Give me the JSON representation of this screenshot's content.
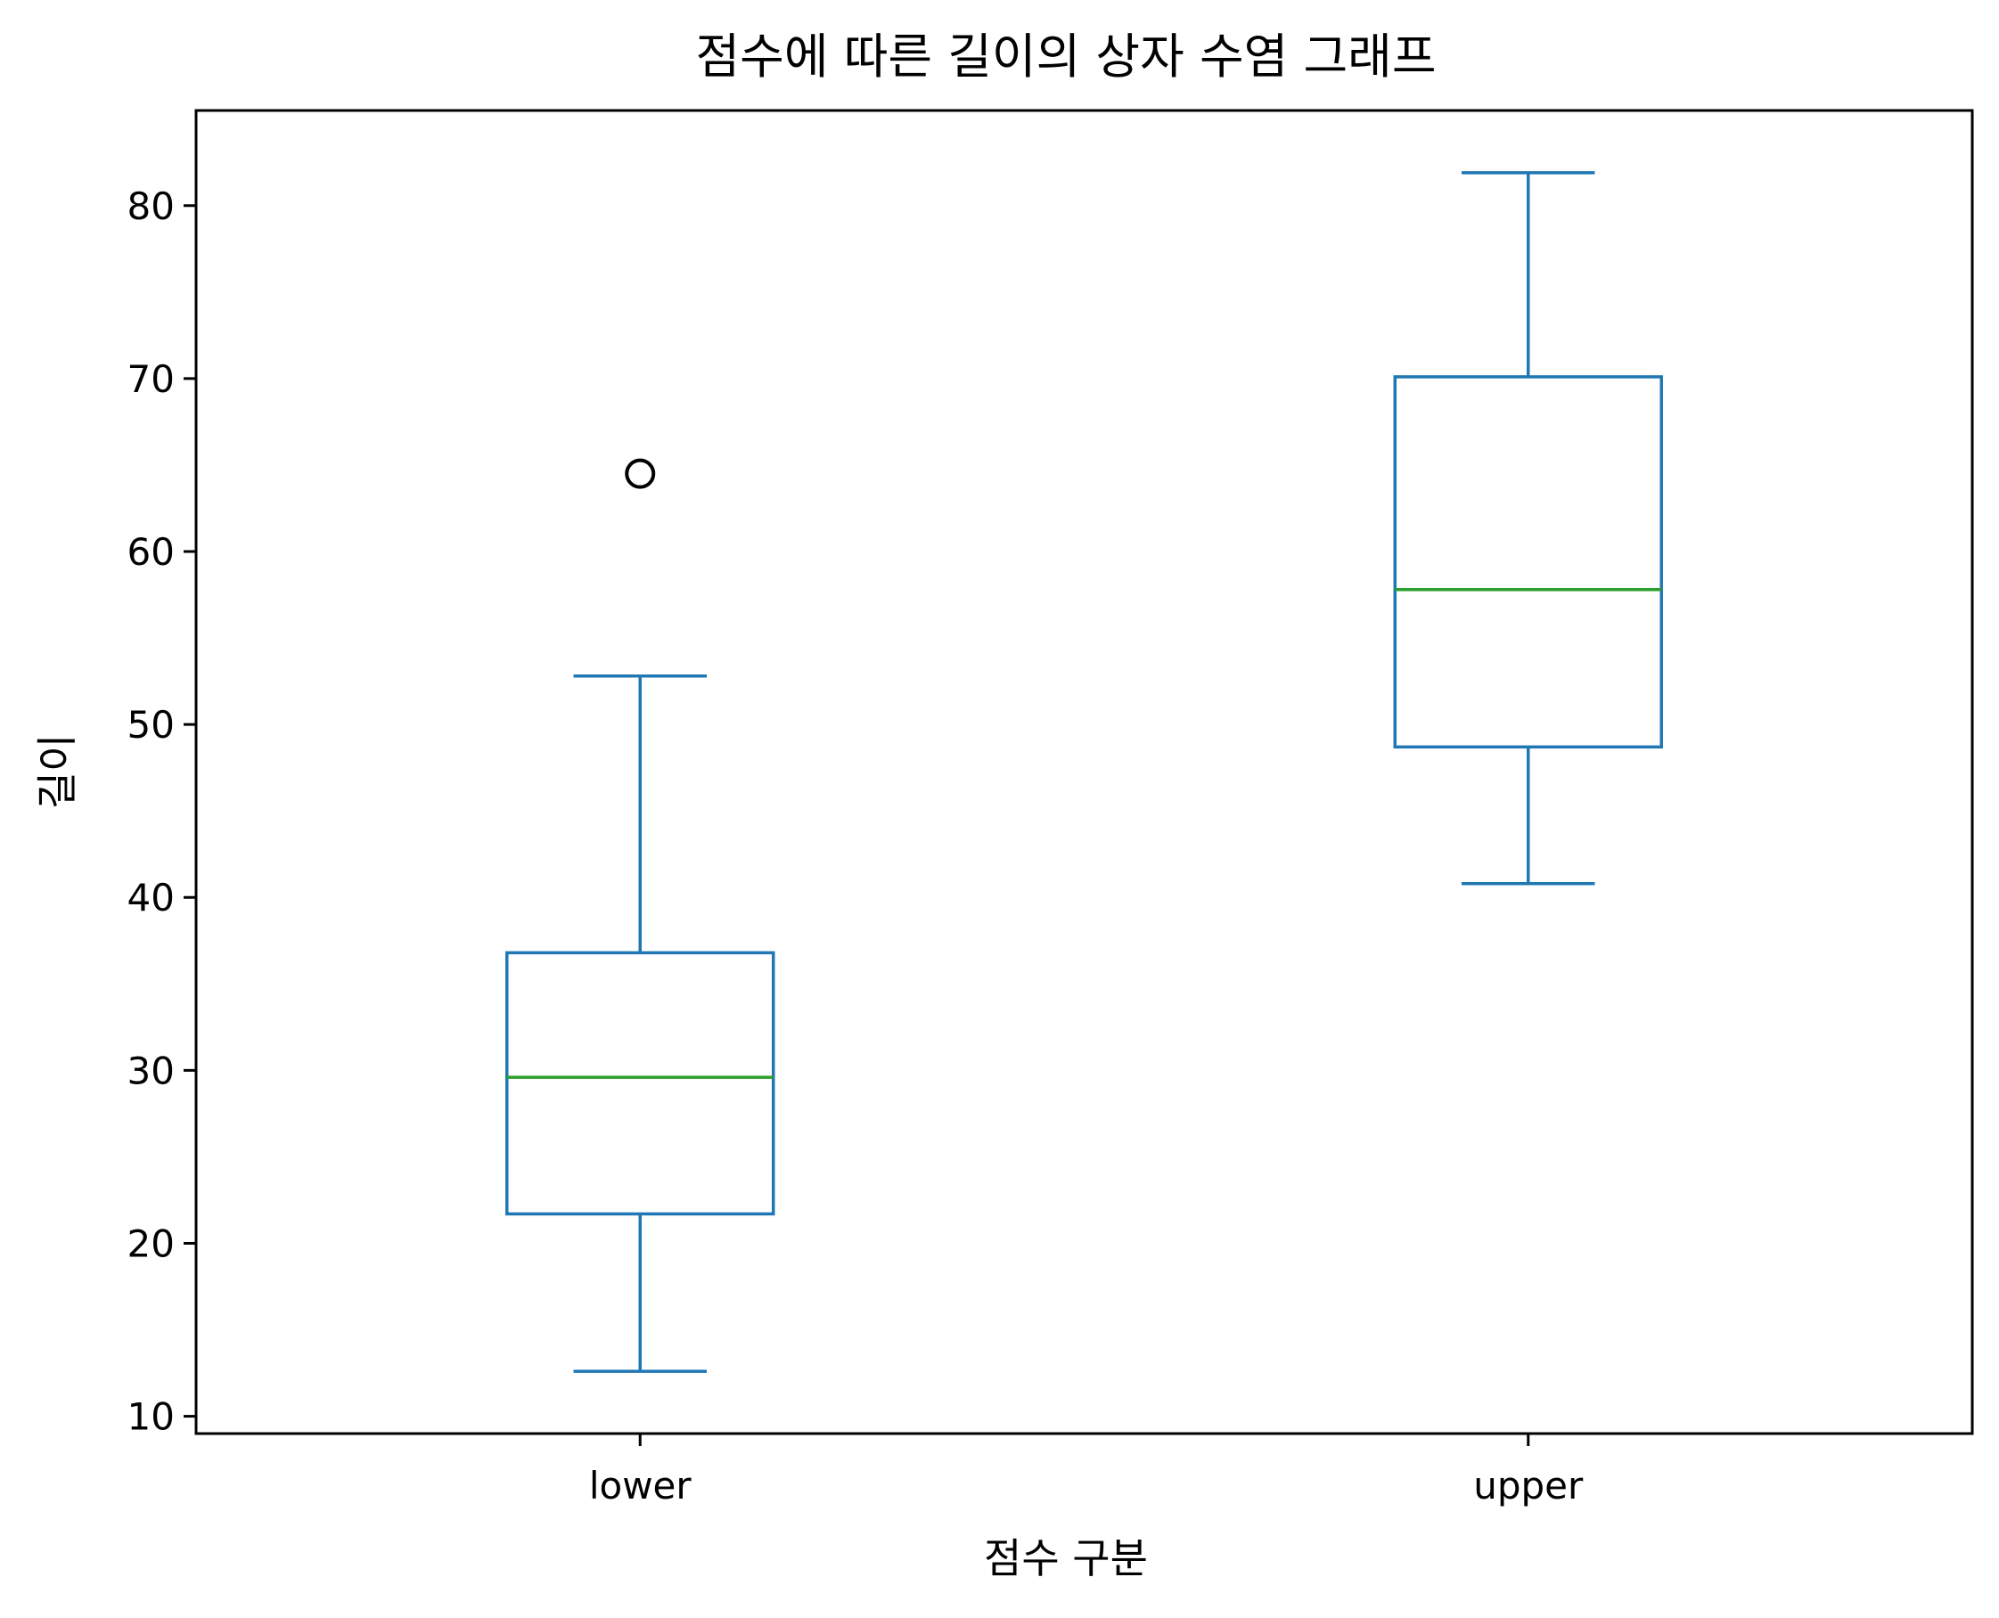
{
  "chart_data": {
    "type": "box",
    "title": "점수에 따른 길이의 상자 수염 그래프",
    "xlabel": "점수 구분",
    "ylabel": "길이",
    "categories": [
      "lower",
      "upper"
    ],
    "ylim": [
      9,
      85.5
    ],
    "yticks": [
      10,
      20,
      30,
      40,
      50,
      60,
      70,
      80
    ],
    "grid": false,
    "boxes": [
      {
        "category": "lower",
        "whislo": 12.6,
        "q1": 21.7,
        "median": 29.6,
        "q3": 36.8,
        "whishi": 52.8,
        "fliers": [
          64.5
        ]
      },
      {
        "category": "upper",
        "whislo": 40.8,
        "q1": 48.7,
        "median": 57.8,
        "q3": 70.1,
        "whishi": 81.9,
        "fliers": []
      }
    ],
    "colors": {
      "box": "#1f77b4",
      "median": "#2ca02c",
      "flier": "#000000",
      "axes": "#000000"
    }
  }
}
